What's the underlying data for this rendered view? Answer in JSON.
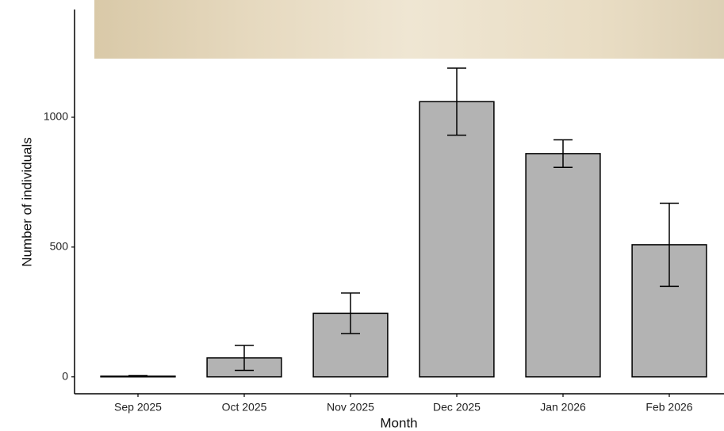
{
  "chart_data": {
    "type": "bar",
    "x_label": "Month",
    "y_label": "Number of individuals",
    "categories": [
      "Sep 2025",
      "Oct 2025",
      "Nov 2025",
      "Dec 2025",
      "Jan 2026",
      "Feb 2026"
    ],
    "values": [
      3,
      73,
      245,
      1060,
      860,
      509
    ],
    "errors": [
      2,
      48,
      78,
      129,
      53,
      160
    ],
    "color": "#b3b3b3",
    "ylim": [
      -65,
      1415
    ],
    "yticks": [
      0,
      500,
      1000
    ],
    "grid": false
  }
}
